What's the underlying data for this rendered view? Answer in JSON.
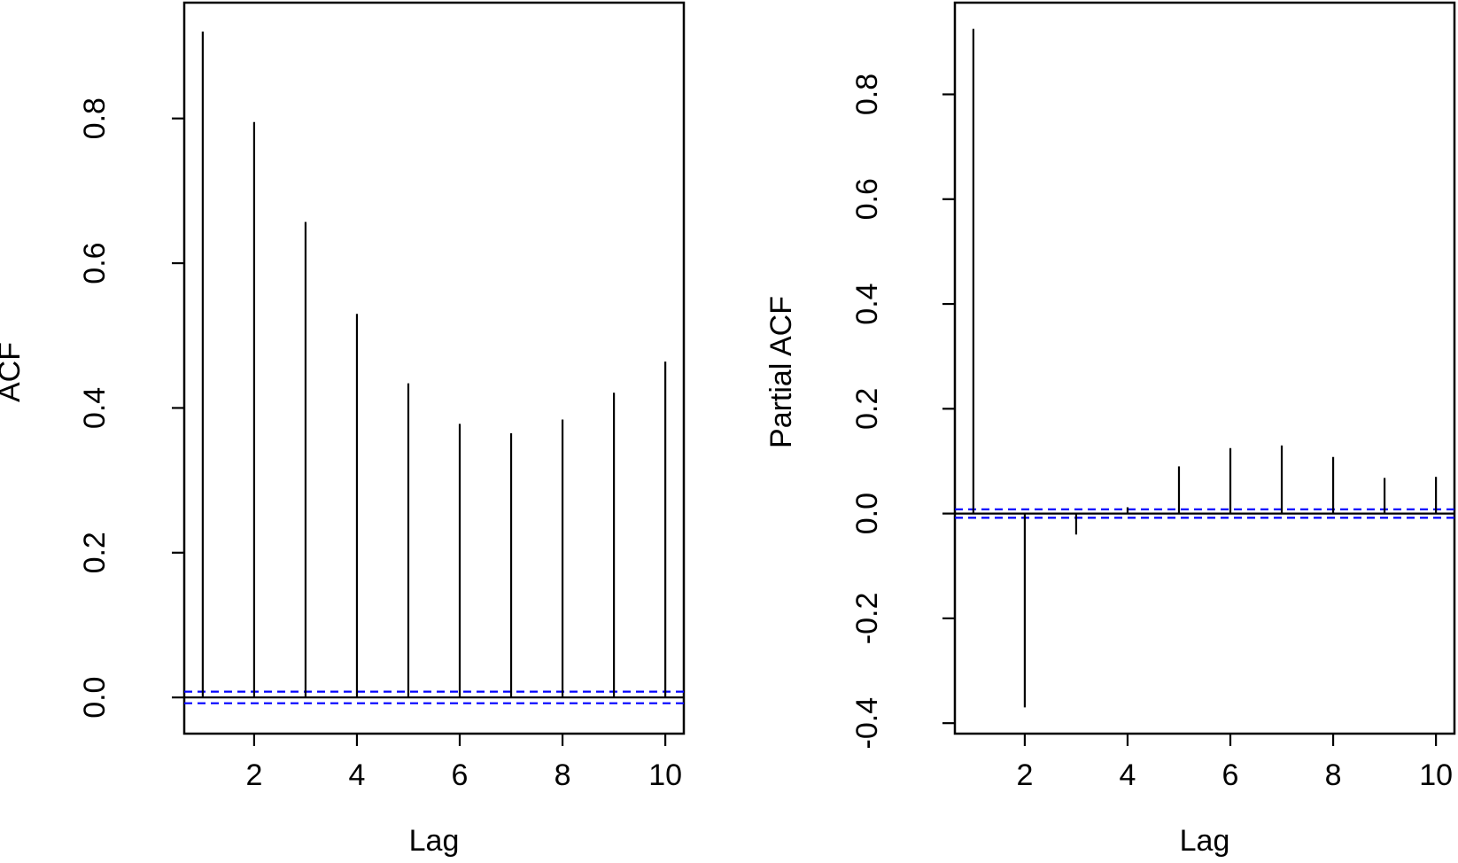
{
  "chart_data": [
    {
      "type": "bar",
      "subtype": "acf-stem",
      "title": "",
      "xlabel": "Lag",
      "ylabel": "ACF",
      "x": [
        1,
        2,
        3,
        4,
        5,
        6,
        7,
        8,
        9,
        10
      ],
      "values": [
        0.92,
        0.795,
        0.657,
        0.53,
        0.434,
        0.378,
        0.365,
        0.384,
        0.421,
        0.464
      ],
      "xticks": [
        2,
        4,
        6,
        8,
        10
      ],
      "xtick_labels": [
        "2",
        "4",
        "6",
        "8",
        "10"
      ],
      "yticks": [
        0.0,
        0.2,
        0.4,
        0.6,
        0.8
      ],
      "ytick_labels": [
        "0.0",
        "0.2",
        "0.4",
        "0.6",
        "0.8"
      ],
      "xlim": [
        0.64,
        10.36
      ],
      "ylim": [
        -0.05,
        0.96
      ],
      "confidence_band": 0.008,
      "zero_line": true,
      "grid": false,
      "colors": {
        "stem": "#000000",
        "band": "#0000ff",
        "zero": "#000000"
      }
    },
    {
      "type": "bar",
      "subtype": "pacf-stem",
      "title": "",
      "xlabel": "Lag",
      "ylabel": "Partial ACF",
      "x": [
        1,
        2,
        3,
        4,
        5,
        6,
        7,
        8,
        9,
        10
      ],
      "values": [
        0.925,
        -0.37,
        -0.04,
        0.012,
        0.09,
        0.125,
        0.13,
        0.108,
        0.068,
        0.07
      ],
      "xticks": [
        2,
        4,
        6,
        8,
        10
      ],
      "xtick_labels": [
        "2",
        "4",
        "6",
        "8",
        "10"
      ],
      "yticks": [
        -0.4,
        -0.2,
        0.0,
        0.2,
        0.4,
        0.6,
        0.8
      ],
      "ytick_labels": [
        "-0.4",
        "-0.2",
        "0.0",
        "0.2",
        "0.4",
        "0.6",
        "0.8"
      ],
      "xlim": [
        0.64,
        10.36
      ],
      "ylim": [
        -0.42,
        0.975
      ],
      "confidence_band": 0.008,
      "zero_line": true,
      "grid": false,
      "colors": {
        "stem": "#000000",
        "band": "#0000ff",
        "zero": "#000000"
      }
    }
  ]
}
